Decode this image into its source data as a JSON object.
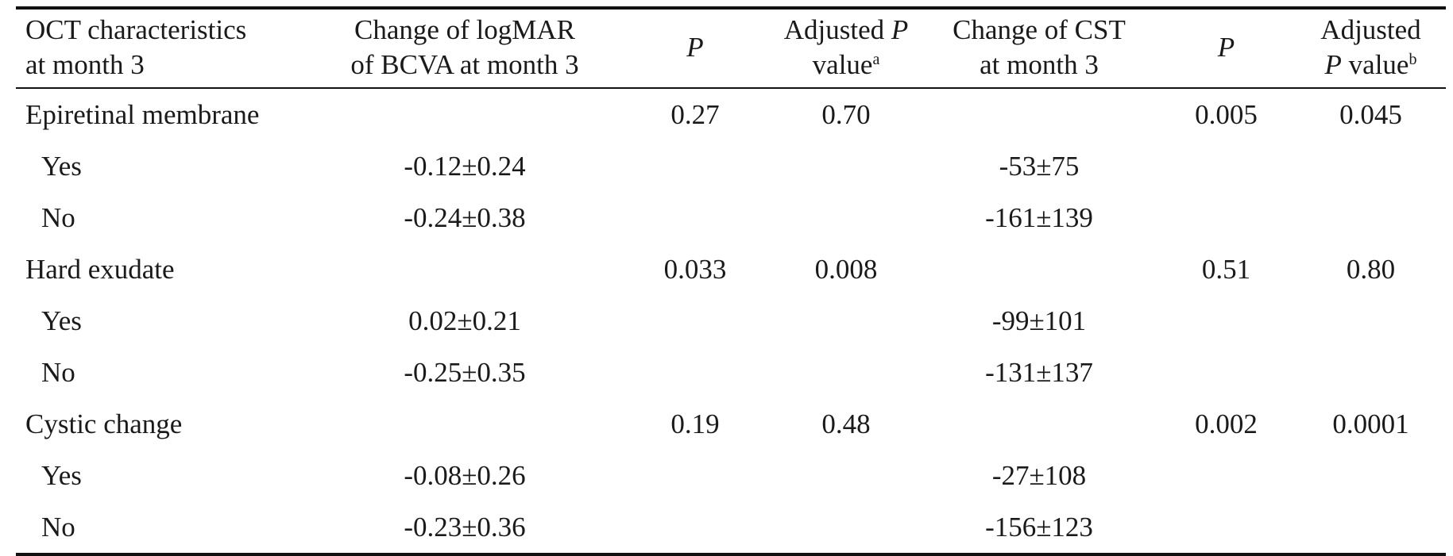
{
  "table": {
    "headers": [
      {
        "line1": "OCT characteristics",
        "line2": "at month 3"
      },
      {
        "line1": "Change of logMAR",
        "line2": "of BCVA at month 3"
      },
      {
        "italic": "P"
      },
      {
        "line1_text": "Adjusted ",
        "line1_italic": "P",
        "line2_text": "value",
        "line2_sup": "a"
      },
      {
        "line1": "Change of CST",
        "line2": "at month 3"
      },
      {
        "italic": "P"
      },
      {
        "line1": "Adjusted",
        "line2_italic": "P",
        "line2_text": " value",
        "line2_sup": "b"
      }
    ],
    "rows": [
      {
        "label": "Epiretinal membrane",
        "bcva": "",
        "p1": "0.27",
        "adj1": "0.70",
        "cst": "",
        "p2": "0.005",
        "adj2": "0.045"
      },
      {
        "label": "Yes",
        "bcva": "-0.12±0.24",
        "p1": "",
        "adj1": "",
        "cst": "-53±75",
        "p2": "",
        "adj2": ""
      },
      {
        "label": "No",
        "bcva": "-0.24±0.38",
        "p1": "",
        "adj1": "",
        "cst": "-161±139",
        "p2": "",
        "adj2": ""
      },
      {
        "label": "Hard exudate",
        "bcva": "",
        "p1": "0.033",
        "adj1": "0.008",
        "cst": "",
        "p2": "0.51",
        "adj2": "0.80"
      },
      {
        "label": "Yes",
        "bcva": "0.02±0.21",
        "p1": "",
        "adj1": "",
        "cst": "-99±101",
        "p2": "",
        "adj2": ""
      },
      {
        "label": "No",
        "bcva": "-0.25±0.35",
        "p1": "",
        "adj1": "",
        "cst": "-131±137",
        "p2": "",
        "adj2": ""
      },
      {
        "label": "Cystic change",
        "bcva": "",
        "p1": "0.19",
        "adj1": "0.48",
        "cst": "",
        "p2": "0.002",
        "adj2": "0.0001"
      },
      {
        "label": "Yes",
        "bcva": "-0.08±0.26",
        "p1": "",
        "adj1": "",
        "cst": "-27±108",
        "p2": "",
        "adj2": ""
      },
      {
        "label": "No",
        "bcva": "-0.23±0.36",
        "p1": "",
        "adj1": "",
        "cst": "-156±123",
        "p2": "",
        "adj2": ""
      }
    ]
  }
}
